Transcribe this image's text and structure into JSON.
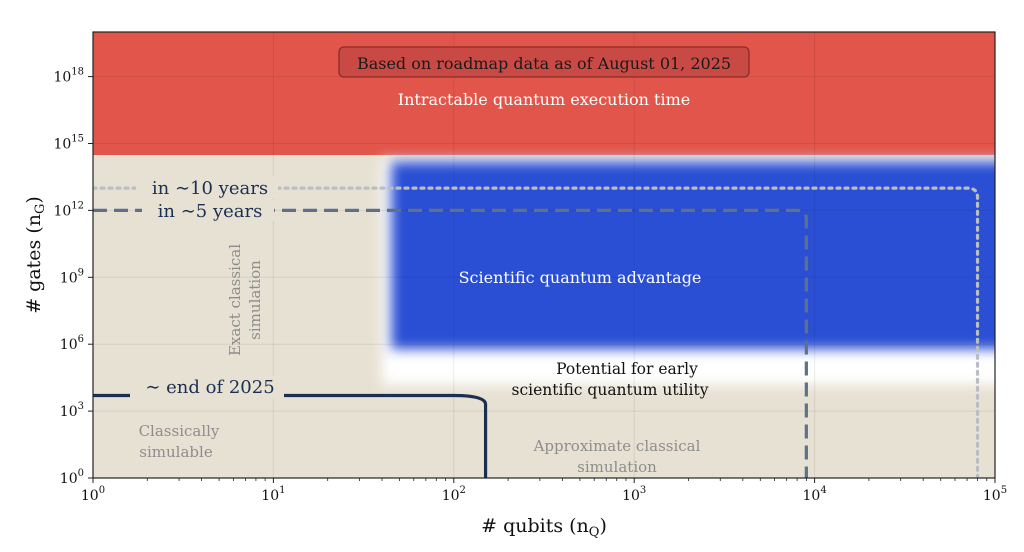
{
  "chart_data": {
    "type": "line",
    "title": "",
    "banner": "Based on roadmap data as of August 01, 2025",
    "xlabel": "# qubits (n",
    "xlabel_sub": "Q",
    "ylabel": "# gates (n",
    "ylabel_sub": "G",
    "x_scale": "log10",
    "y_scale": "log10",
    "xlim": [
      1,
      100000
    ],
    "ylim": [
      1,
      1e+20
    ],
    "x_ticks": [
      {
        "value": 1,
        "base": "10",
        "exp": "0"
      },
      {
        "value": 10,
        "base": "10",
        "exp": "1"
      },
      {
        "value": 100,
        "base": "10",
        "exp": "2"
      },
      {
        "value": 1000,
        "base": "10",
        "exp": "3"
      },
      {
        "value": 10000,
        "base": "10",
        "exp": "4"
      },
      {
        "value": 100000,
        "base": "10",
        "exp": "5"
      }
    ],
    "y_ticks": [
      {
        "value": 1,
        "base": "10",
        "exp": "0"
      },
      {
        "value": 1000,
        "base": "10",
        "exp": "3"
      },
      {
        "value": 1000000,
        "base": "10",
        "exp": "6"
      },
      {
        "value": 1000000000.0,
        "base": "10",
        "exp": "9"
      },
      {
        "value": 1000000000000.0,
        "base": "10",
        "exp": "12"
      },
      {
        "value": 1000000000000000.0,
        "base": "10",
        "exp": "15"
      },
      {
        "value": 1e+18,
        "base": "10",
        "exp": "18"
      }
    ],
    "regions": [
      {
        "name": "intractable",
        "label": "Intractable quantum execution time",
        "color": "#e2554a",
        "x_range": [
          1,
          100000
        ],
        "y_range": [
          300000000000000.0,
          1e+20
        ]
      },
      {
        "name": "classically-simulable",
        "label": "Classically simulable",
        "color": "#e7e1d3",
        "x_range": [
          1,
          100000
        ],
        "y_range": [
          1,
          300000000000000.0
        ]
      },
      {
        "name": "early-utility",
        "label": "Potential for early scientific quantum utility",
        "color": "#ffffff",
        "x_range": [
          40,
          100000
        ],
        "y_range": [
          15000,
          200000000000000.0
        ]
      },
      {
        "name": "advantage",
        "label": "Scientific quantum advantage",
        "color": "#2b4fd4",
        "x_range": [
          45,
          100000
        ],
        "y_range": [
          600000,
          150000000000000.0
        ]
      }
    ],
    "region_labels": {
      "exact_line1": "Exact classical",
      "exact_line2": "simulation",
      "approx_line1": "Approximate classical",
      "approx_line2": "simulation",
      "simulable_line1": "Classically",
      "simulable_line2": "simulable",
      "utility_line1": "Potential for early",
      "utility_line2": "scientific quantum utility"
    },
    "series": [
      {
        "name": "~ end of 2025",
        "label": "∼ end of 2025",
        "style": "solid",
        "color": "#1b2f52",
        "points": [
          [
            1,
            5000
          ],
          [
            100,
            5000
          ],
          [
            150,
            2000
          ],
          [
            150,
            1
          ]
        ]
      },
      {
        "name": "in ~5 years",
        "label": "in ∼5 years",
        "style": "dashed",
        "color": "#5e7188",
        "points": [
          [
            1,
            1000000000000.0
          ],
          [
            8000,
            1000000000000.0
          ],
          [
            9000,
            400000000000.0
          ],
          [
            9000,
            1
          ]
        ]
      },
      {
        "name": "in ~10 years",
        "label": "in ∼10 years",
        "style": "dotted",
        "color": "#b9bec4",
        "points": [
          [
            1,
            10000000000000.0
          ],
          [
            70000,
            10000000000000.0
          ],
          [
            80000,
            4000000000000.0
          ],
          [
            80000,
            1
          ]
        ]
      }
    ]
  }
}
